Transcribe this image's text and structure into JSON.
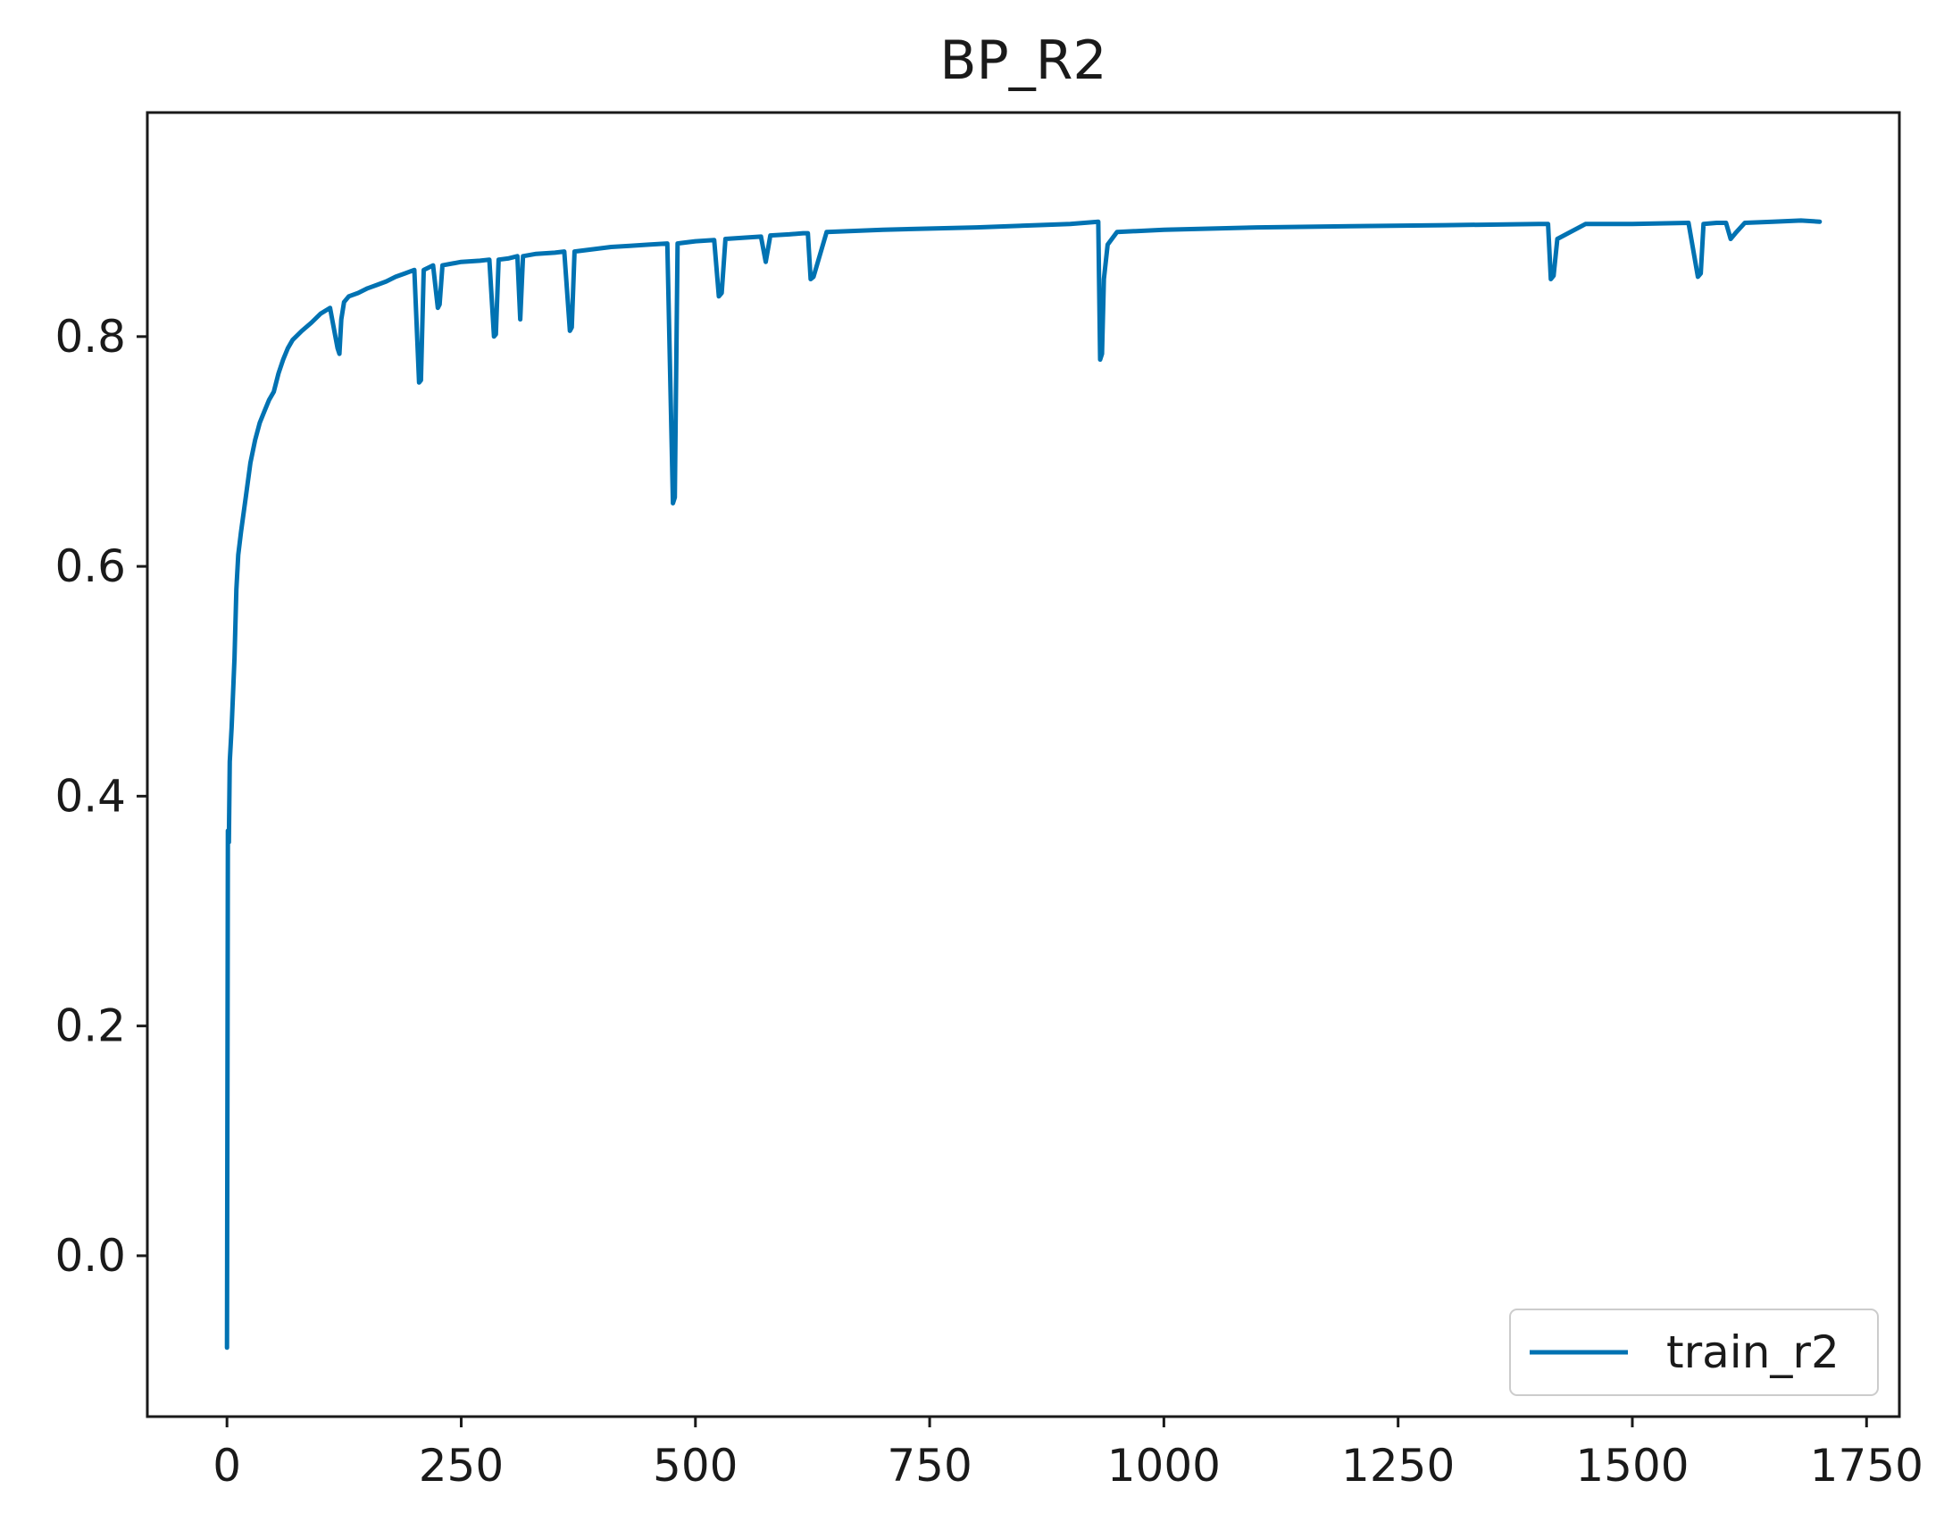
{
  "chart_data": {
    "type": "line",
    "title": "BP_R2",
    "xlabel": "",
    "ylabel": "",
    "xlim": [
      -85,
      1785
    ],
    "ylim": [
      -0.14,
      0.995
    ],
    "x_ticks": [
      0,
      250,
      500,
      750,
      1000,
      1250,
      1500,
      1750
    ],
    "x_tick_labels": [
      "0",
      "250",
      "500",
      "750",
      "1000",
      "1250",
      "1500",
      "1750"
    ],
    "y_ticks": [
      0.0,
      0.2,
      0.4,
      0.6,
      0.8
    ],
    "y_tick_labels": [
      "0.0",
      "0.2",
      "0.4",
      "0.6",
      "0.8"
    ],
    "grid": false,
    "legend_position": "lower-right",
    "series": [
      {
        "name": "train_r2",
        "color": "#0072b2",
        "x": [
          0,
          1,
          2,
          3,
          5,
          8,
          10,
          12,
          15,
          20,
          25,
          30,
          35,
          40,
          45,
          50,
          55,
          60,
          65,
          70,
          80,
          90,
          100,
          110,
          118,
          120,
          122,
          125,
          130,
          140,
          150,
          160,
          170,
          180,
          190,
          200,
          205,
          207,
          210,
          220,
          225,
          227,
          230,
          250,
          270,
          280,
          285,
          287,
          290,
          300,
          310,
          313,
          316,
          330,
          350,
          360,
          366,
          368,
          371,
          390,
          410,
          430,
          450,
          470,
          476,
          478,
          481,
          500,
          520,
          525,
          528,
          532,
          550,
          570,
          575,
          580,
          600,
          615,
          620,
          623,
          626,
          640,
          700,
          800,
          900,
          930,
          932,
          934,
          936,
          940,
          950,
          1000,
          1100,
          1200,
          1300,
          1400,
          1410,
          1413,
          1416,
          1420,
          1450,
          1500,
          1560,
          1570,
          1573,
          1576,
          1590,
          1600,
          1605,
          1610,
          1620,
          1650,
          1680,
          1700
        ],
        "y": [
          -0.08,
          0.37,
          0.36,
          0.43,
          0.46,
          0.52,
          0.58,
          0.61,
          0.63,
          0.66,
          0.69,
          0.71,
          0.725,
          0.735,
          0.745,
          0.752,
          0.768,
          0.78,
          0.79,
          0.797,
          0.805,
          0.812,
          0.82,
          0.825,
          0.79,
          0.785,
          0.815,
          0.83,
          0.835,
          0.838,
          0.842,
          0.845,
          0.848,
          0.852,
          0.855,
          0.858,
          0.76,
          0.762,
          0.858,
          0.862,
          0.825,
          0.828,
          0.862,
          0.865,
          0.866,
          0.867,
          0.8,
          0.802,
          0.867,
          0.868,
          0.87,
          0.815,
          0.87,
          0.872,
          0.873,
          0.874,
          0.805,
          0.808,
          0.874,
          0.876,
          0.878,
          0.879,
          0.88,
          0.881,
          0.655,
          0.66,
          0.881,
          0.883,
          0.884,
          0.835,
          0.838,
          0.885,
          0.886,
          0.887,
          0.865,
          0.888,
          0.889,
          0.89,
          0.89,
          0.85,
          0.852,
          0.891,
          0.893,
          0.895,
          0.898,
          0.9,
          0.78,
          0.785,
          0.85,
          0.88,
          0.891,
          0.893,
          0.895,
          0.896,
          0.897,
          0.898,
          0.898,
          0.85,
          0.853,
          0.885,
          0.898,
          0.898,
          0.899,
          0.852,
          0.855,
          0.898,
          0.899,
          0.899,
          0.885,
          0.89,
          0.899,
          0.9,
          0.901,
          0.9
        ]
      }
    ]
  }
}
